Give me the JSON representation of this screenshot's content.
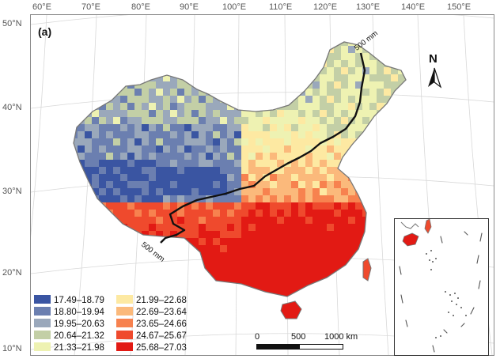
{
  "panel_label": "(a)",
  "top_ticks": [
    "60°E",
    "70°E",
    "80°E",
    "90°E",
    "100°E",
    "110°E",
    "120°E",
    "130°E",
    "140°E",
    "150°E"
  ],
  "left_ticks": [
    "50°N",
    "40°N",
    "30°N",
    "20°N",
    "10°N"
  ],
  "isohyet": {
    "upper_label": "500 mm",
    "lower_label": "500 mm"
  },
  "north_arrow": {
    "letter": "N",
    "icon": "north-arrow-icon"
  },
  "scale_bar": {
    "labels": [
      "0",
      "500",
      "1000 km"
    ]
  },
  "legend": [
    {
      "label": "17.49–18.79",
      "color": "#3a55a2"
    },
    {
      "label": "18.80–19.94",
      "color": "#6b7fb0"
    },
    {
      "label": "19.95–20.63",
      "color": "#9aa8bb"
    },
    {
      "label": "20.64–21.32",
      "color": "#c3cfa6"
    },
    {
      "label": "21.33–21.98",
      "color": "#eef2b2"
    },
    {
      "label": "21.99–22.68",
      "color": "#fde9a2"
    },
    {
      "label": "22.69–23.64",
      "color": "#fbb97b"
    },
    {
      "label": "23.65–24.66",
      "color": "#f7824f"
    },
    {
      "label": "24.67–25.67",
      "color": "#ef4a2d"
    },
    {
      "label": "25.68–27.03",
      "color": "#e21a14"
    }
  ]
}
